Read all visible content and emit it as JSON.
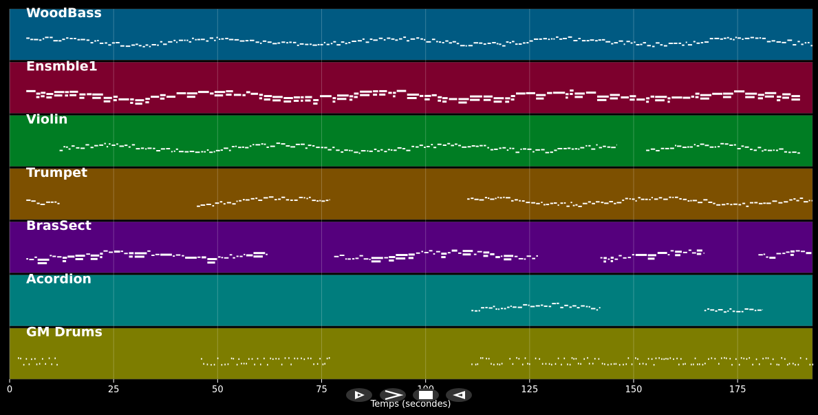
{
  "chart_data": {
    "type": "piano-roll",
    "xlabel": "Temps (secondes)",
    "xlim": [
      0,
      193
    ],
    "xticks": [
      0,
      25,
      50,
      75,
      100,
      125,
      150,
      175
    ],
    "grid": true,
    "tracks": [
      {
        "name": "WoodBass",
        "color": "#005a82",
        "segments": [
          [
            4,
            193
          ]
        ],
        "density": "continuous",
        "style": "thin"
      },
      {
        "name": "Ensmble1",
        "color": "#7d002d",
        "segments": [
          [
            4,
            190
          ]
        ],
        "density": "continuous",
        "style": "thick"
      },
      {
        "name": "Violin",
        "color": "#007d23",
        "segments": [
          [
            12,
            146
          ],
          [
            153,
            190
          ]
        ],
        "density": "continuous",
        "style": "thin"
      },
      {
        "name": "Trumpet",
        "color": "#7d5000",
        "segments": [
          [
            4,
            12
          ],
          [
            45,
            77
          ],
          [
            110,
            193
          ]
        ],
        "density": "continuous",
        "style": "thin"
      },
      {
        "name": "BrasSect",
        "color": "#55007d",
        "segments": [
          [
            4,
            62
          ],
          [
            78,
            127
          ],
          [
            142,
            167
          ],
          [
            180,
            193
          ]
        ],
        "density": "continuous",
        "style": "mixed"
      },
      {
        "name": "Acordion",
        "color": "#007d7d",
        "segments": [
          [
            111,
            142
          ],
          [
            167,
            181
          ]
        ],
        "density": "continuous",
        "style": "thin"
      },
      {
        "name": "GM Drums",
        "color": "#7d7d00",
        "segments": [
          [
            2,
            12
          ],
          [
            46,
            77
          ],
          [
            111,
            193
          ]
        ],
        "density": "dotted",
        "style": "dots"
      }
    ]
  },
  "controls": {
    "play_icon": "play-outline-icon",
    "forward_icon": "chevron-right-icon",
    "stop_icon": "stop-icon",
    "back_icon": "rewind-icon"
  }
}
